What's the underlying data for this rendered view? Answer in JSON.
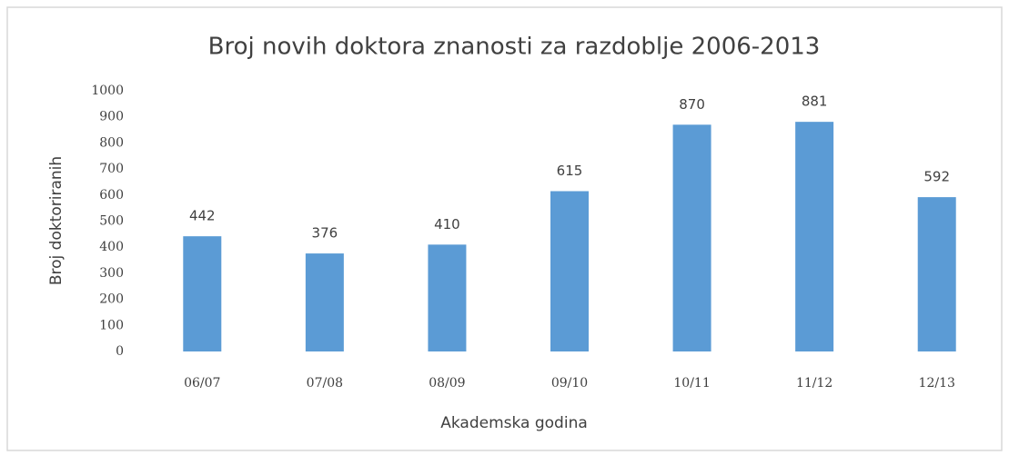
{
  "chart_data": {
    "type": "bar",
    "title": "Broj novih doktora znanosti za razdoblje 2006-2013",
    "x_label": "Akademska godina",
    "y_label": "Broj doktoriranih",
    "categories": [
      "06/07",
      "07/08",
      "08/09",
      "09/10",
      "10/11",
      "11/12",
      "12/13"
    ],
    "values": [
      442,
      376,
      410,
      615,
      870,
      881,
      592
    ],
    "color": "#5b9bd5",
    "ylim": [
      0,
      1000
    ],
    "yticks": [
      0,
      100,
      200,
      300,
      400,
      500,
      600,
      700,
      800,
      900,
      1000
    ],
    "grid": false
  }
}
